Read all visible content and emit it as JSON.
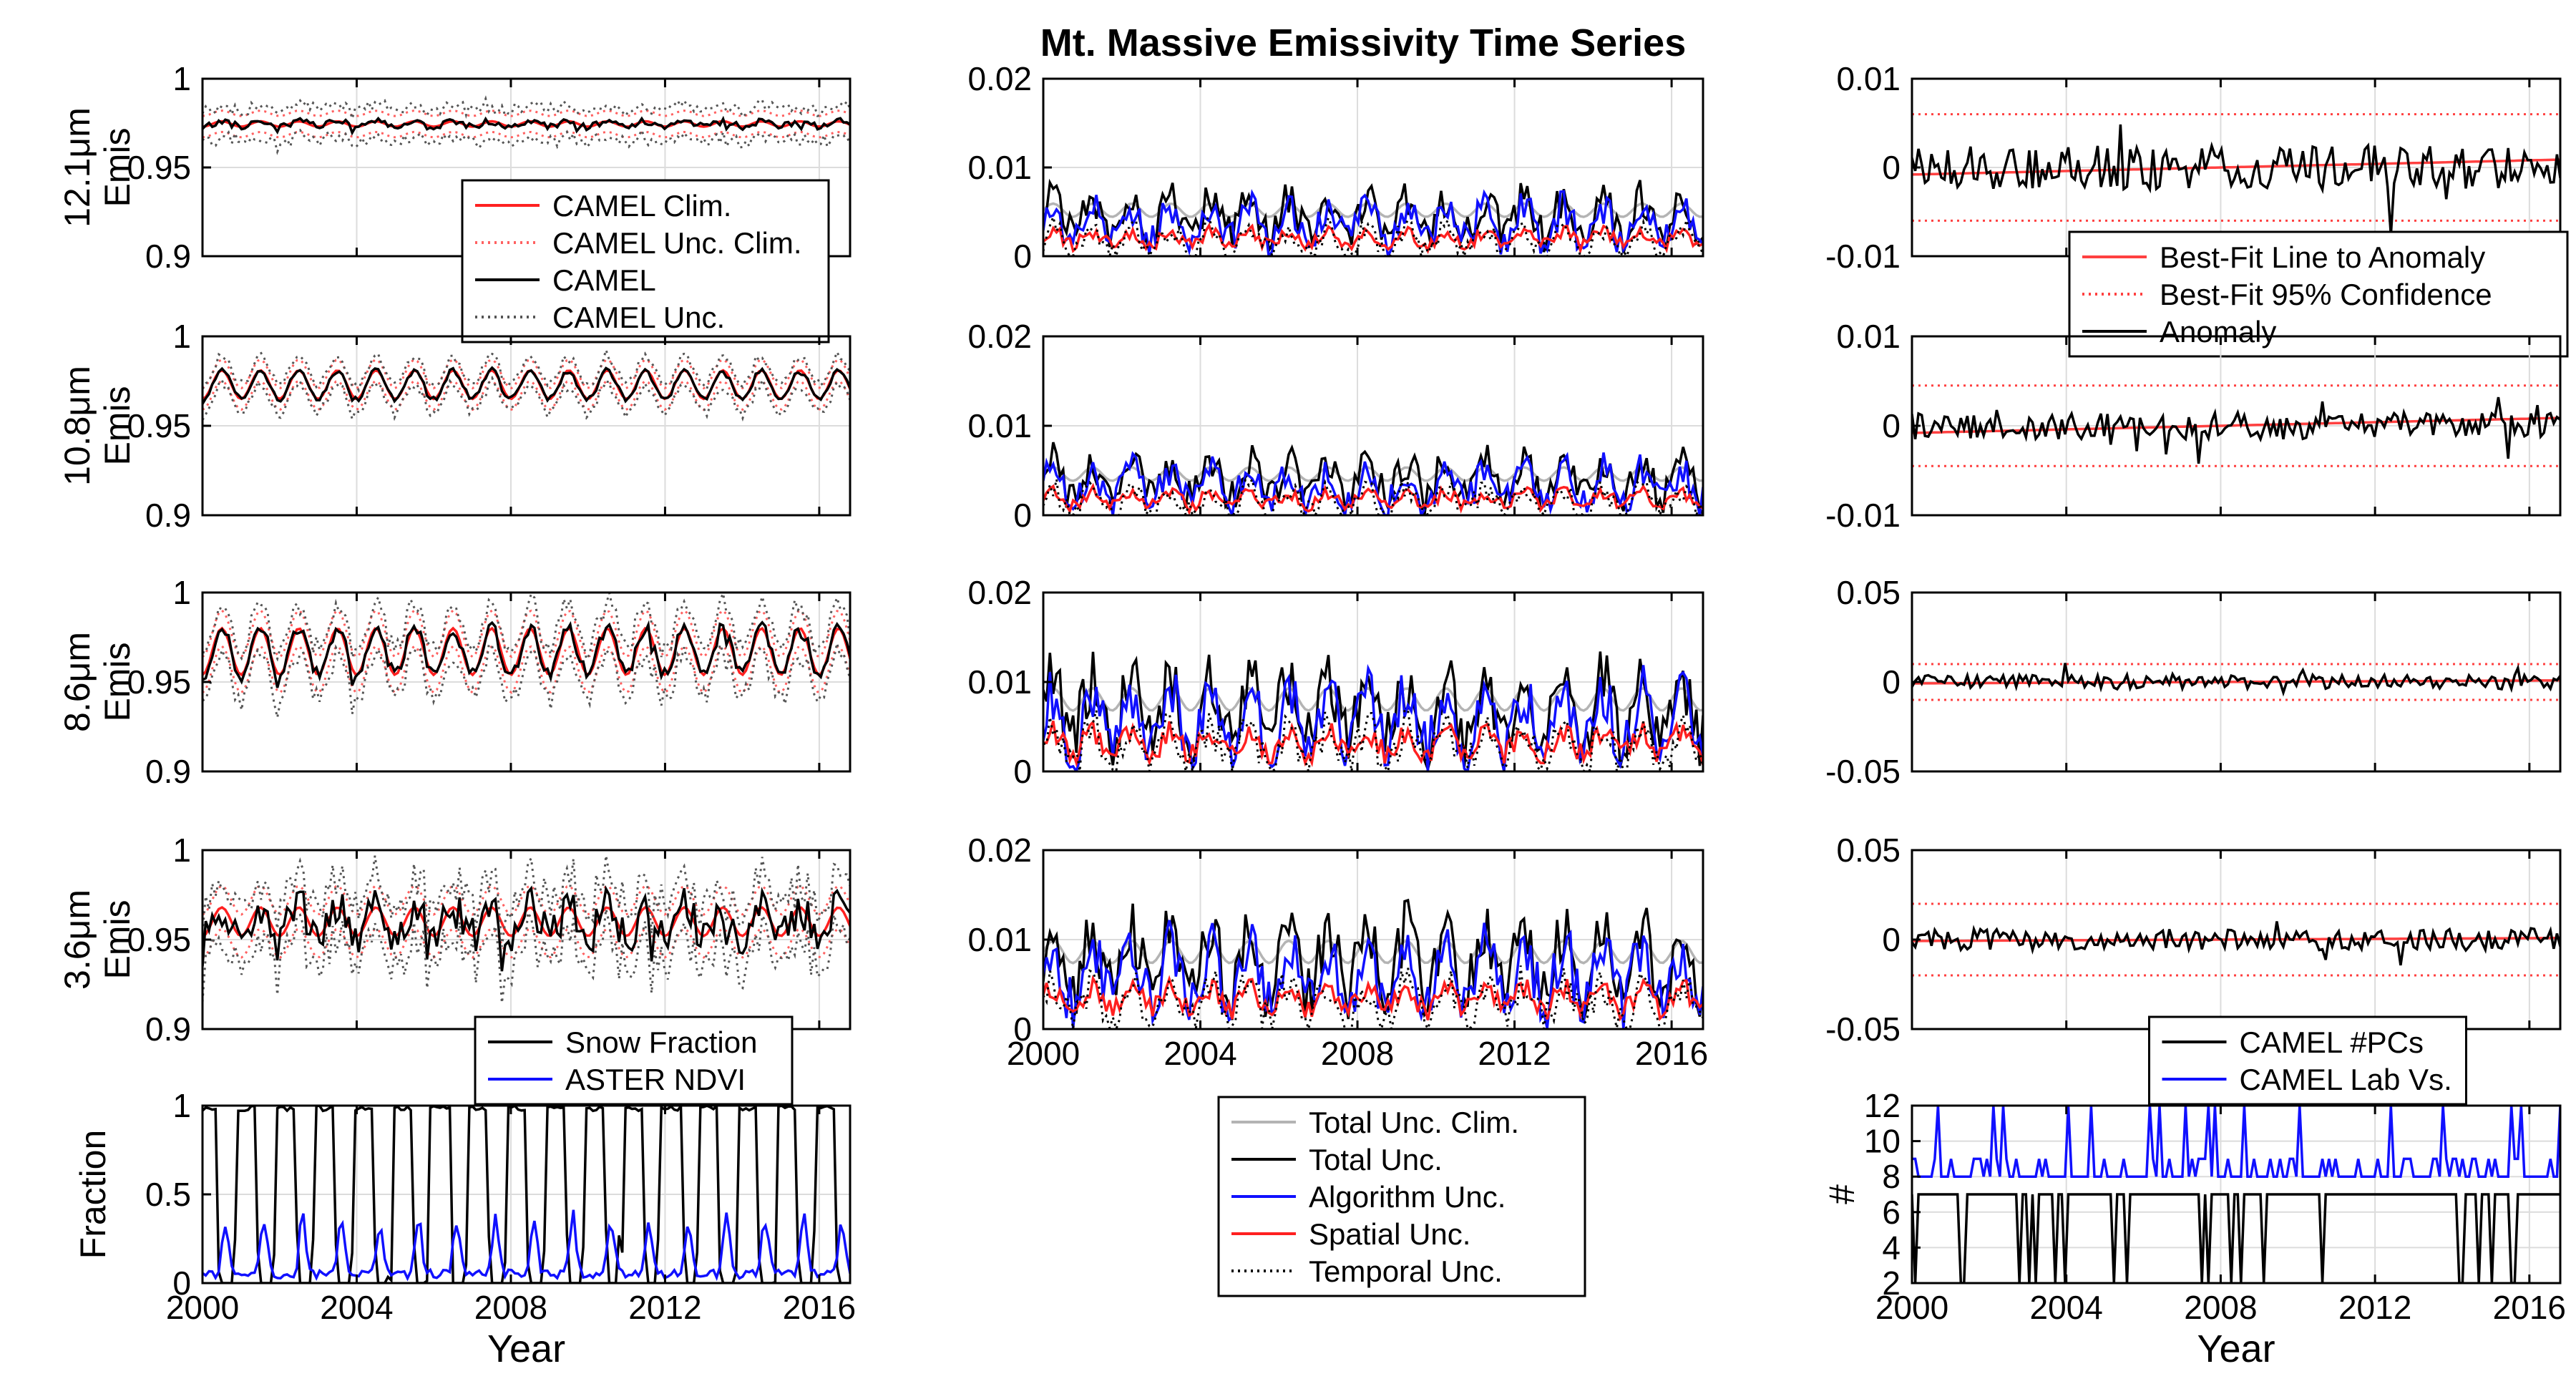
{
  "figure": {
    "title": "Mt. Massive Emissivity Time Series"
  },
  "chart_data": [
    {
      "id": "emis121",
      "type": "line",
      "ylabel": [
        "12.1μm",
        "Emis"
      ],
      "xlim": [
        2000,
        2016.8
      ],
      "ylim": [
        0.9,
        1.0
      ],
      "yticks": [
        {
          "v": 0.9,
          "label": "0.9"
        },
        {
          "v": 0.95,
          "label": "0.95"
        },
        {
          "v": 1.0,
          "label": "1"
        }
      ],
      "xticks": [
        2000,
        2004,
        2008,
        2012,
        2016
      ],
      "show_xticklabels": false,
      "gen": {
        "base": 0.9745,
        "amp": 0.0015,
        "noise": 0.002,
        "seed": 11
      },
      "series": [
        {
          "name": "CAMEL Clim.",
          "color": "#ff2020",
          "style": "solid",
          "kind": "clim"
        },
        {
          "name": "CAMEL Unc. Clim.",
          "color": "#ff6060",
          "style": "dotted",
          "kind": "climband",
          "offset": 0.006
        },
        {
          "name": "CAMEL",
          "color": "#000000",
          "style": "solid",
          "kind": "data"
        },
        {
          "name": "CAMEL Unc.",
          "color": "#555555",
          "style": "dotted",
          "kind": "band",
          "offset": 0.009
        }
      ],
      "legend": {
        "position": "bottom-right",
        "entries": [
          "CAMEL Clim.",
          "CAMEL Unc. Clim.",
          "CAMEL",
          "CAMEL Unc."
        ]
      }
    },
    {
      "id": "emis108",
      "type": "line",
      "ylabel": [
        "10.8μm",
        "Emis"
      ],
      "xlim": [
        2000,
        2016.8
      ],
      "ylim": [
        0.9,
        1.0
      ],
      "yticks": [
        {
          "v": 0.9,
          "label": "0.9"
        },
        {
          "v": 0.95,
          "label": "0.95"
        },
        {
          "v": 1.0,
          "label": "1"
        }
      ],
      "xticks": [
        2000,
        2004,
        2008,
        2012,
        2016
      ],
      "show_xticklabels": false,
      "gen": {
        "base": 0.973,
        "amp": 0.008,
        "noise": 0.0015,
        "seed": 22
      },
      "series": [
        {
          "name": "CAMEL Clim.",
          "color": "#ff2020",
          "style": "solid",
          "kind": "clim"
        },
        {
          "name": "CAMEL Unc. Clim.",
          "color": "#ff6060",
          "style": "dotted",
          "kind": "climband",
          "offset": 0.006
        },
        {
          "name": "CAMEL",
          "color": "#000000",
          "style": "solid",
          "kind": "data"
        },
        {
          "name": "CAMEL Unc.",
          "color": "#555555",
          "style": "dotted",
          "kind": "band",
          "offset": 0.008
        }
      ]
    },
    {
      "id": "emis86",
      "type": "line",
      "ylabel": [
        "8.6μm",
        "Emis"
      ],
      "xlim": [
        2000,
        2016.8
      ],
      "ylim": [
        0.9,
        1.0
      ],
      "yticks": [
        {
          "v": 0.9,
          "label": "0.9"
        },
        {
          "v": 0.95,
          "label": "0.95"
        },
        {
          "v": 1.0,
          "label": "1"
        }
      ],
      "xticks": [
        2000,
        2004,
        2008,
        2012,
        2016
      ],
      "show_xticklabels": false,
      "gen": {
        "base": 0.967,
        "amp": 0.013,
        "noise": 0.004,
        "seed": 33
      },
      "series": [
        {
          "name": "CAMEL Clim.",
          "color": "#ff2020",
          "style": "solid",
          "kind": "clim"
        },
        {
          "name": "CAMEL Unc. Clim.",
          "color": "#ff6060",
          "style": "dotted",
          "kind": "climband",
          "offset": 0.01
        },
        {
          "name": "CAMEL",
          "color": "#000000",
          "style": "solid",
          "kind": "data"
        },
        {
          "name": "CAMEL Unc.",
          "color": "#555555",
          "style": "dotted",
          "kind": "band",
          "offset": 0.014
        }
      ]
    },
    {
      "id": "emis36",
      "type": "line",
      "ylabel": [
        "3.6μm",
        "Emis"
      ],
      "xlim": [
        2000,
        2016.8
      ],
      "ylim": [
        0.9,
        1.0
      ],
      "yticks": [
        {
          "v": 0.9,
          "label": "0.9"
        },
        {
          "v": 0.95,
          "label": "0.95"
        },
        {
          "v": 1.0,
          "label": "1"
        }
      ],
      "xticks": [
        2000,
        2004,
        2008,
        2012,
        2016
      ],
      "show_xticklabels": false,
      "gen": {
        "base": 0.96,
        "amp": 0.008,
        "noise": 0.011,
        "seed": 44
      },
      "series": [
        {
          "name": "CAMEL Clim.",
          "color": "#ff2020",
          "style": "solid",
          "kind": "clim"
        },
        {
          "name": "CAMEL Unc. Clim.",
          "color": "#ff6060",
          "style": "dotted",
          "kind": "climband",
          "offset": 0.012
        },
        {
          "name": "CAMEL",
          "color": "#000000",
          "style": "solid",
          "kind": "data"
        },
        {
          "name": "CAMEL Unc.",
          "color": "#555555",
          "style": "dotted",
          "kind": "band",
          "offset": 0.016
        }
      ]
    },
    {
      "id": "fraction",
      "type": "line",
      "ylabel": [
        "Fraction"
      ],
      "xlabel": "Year",
      "xlim": [
        2000,
        2016.8
      ],
      "ylim": [
        0,
        1
      ],
      "yticks": [
        {
          "v": 0,
          "label": "0"
        },
        {
          "v": 0.5,
          "label": "0.5"
        },
        {
          "v": 1,
          "label": "1"
        }
      ],
      "xticks": [
        2000,
        2004,
        2008,
        2012,
        2016
      ],
      "show_xticklabels": true,
      "gen": {
        "seed": 55
      },
      "series": [
        {
          "name": "Snow Fraction",
          "color": "#000000",
          "style": "solid",
          "kind": "snow"
        },
        {
          "name": "ASTER NDVI",
          "color": "#1010ff",
          "style": "solid",
          "kind": "ndvi"
        }
      ],
      "legend": {
        "position": "above",
        "entries": [
          "Snow Fraction",
          "ASTER NDVI"
        ]
      }
    },
    {
      "id": "unc121",
      "type": "line",
      "xlim": [
        2000,
        2016.8
      ],
      "ylim": [
        0,
        0.02
      ],
      "yticks": [
        {
          "v": 0,
          "label": "0"
        },
        {
          "v": 0.01,
          "label": "0.01"
        },
        {
          "v": 0.02,
          "label": "0.02"
        }
      ],
      "xticks": [
        2000,
        2004,
        2008,
        2012,
        2016
      ],
      "show_xticklabels": false,
      "gen": {
        "level": 0.0045,
        "spread": 0.003,
        "seed": 61
      },
      "series": [
        {
          "name": "Total Unc. Clim.",
          "color": "#b4b4b4",
          "style": "solid"
        },
        {
          "name": "Total Unc.",
          "color": "#000000",
          "style": "solid"
        },
        {
          "name": "Algorithm Unc.",
          "color": "#1010ff",
          "style": "solid"
        },
        {
          "name": "Spatial Unc.",
          "color": "#ff2020",
          "style": "solid"
        },
        {
          "name": "Temporal Unc.",
          "color": "#000000",
          "style": "dotted"
        }
      ]
    },
    {
      "id": "unc108",
      "type": "line",
      "xlim": [
        2000,
        2016.8
      ],
      "ylim": [
        0,
        0.02
      ],
      "yticks": [
        {
          "v": 0,
          "label": "0"
        },
        {
          "v": 0.01,
          "label": "0.01"
        },
        {
          "v": 0.02,
          "label": "0.02"
        }
      ],
      "xticks": [
        2000,
        2004,
        2008,
        2012,
        2016
      ],
      "show_xticklabels": false,
      "gen": {
        "level": 0.004,
        "spread": 0.003,
        "seed": 62
      },
      "series": [
        {
          "name": "Total Unc. Clim.",
          "color": "#b4b4b4",
          "style": "solid"
        },
        {
          "name": "Total Unc.",
          "color": "#000000",
          "style": "solid"
        },
        {
          "name": "Algorithm Unc.",
          "color": "#1010ff",
          "style": "solid"
        },
        {
          "name": "Spatial Unc.",
          "color": "#ff2020",
          "style": "solid"
        },
        {
          "name": "Temporal Unc.",
          "color": "#000000",
          "style": "dotted"
        }
      ]
    },
    {
      "id": "unc86",
      "type": "line",
      "xlim": [
        2000,
        2016.8
      ],
      "ylim": [
        0,
        0.02
      ],
      "yticks": [
        {
          "v": 0,
          "label": "0"
        },
        {
          "v": 0.01,
          "label": "0.01"
        },
        {
          "v": 0.02,
          "label": "0.02"
        }
      ],
      "xticks": [
        2000,
        2004,
        2008,
        2012,
        2016
      ],
      "show_xticklabels": false,
      "gen": {
        "level": 0.007,
        "spread": 0.005,
        "seed": 63
      },
      "series": [
        {
          "name": "Total Unc. Clim.",
          "color": "#b4b4b4",
          "style": "solid"
        },
        {
          "name": "Total Unc.",
          "color": "#000000",
          "style": "solid"
        },
        {
          "name": "Algorithm Unc.",
          "color": "#1010ff",
          "style": "solid"
        },
        {
          "name": "Spatial Unc.",
          "color": "#ff2020",
          "style": "solid"
        },
        {
          "name": "Temporal Unc.",
          "color": "#000000",
          "style": "dotted"
        }
      ]
    },
    {
      "id": "unc36",
      "type": "line",
      "xlim": [
        2000,
        2016.8
      ],
      "ylim": [
        0,
        0.02
      ],
      "yticks": [
        {
          "v": 0,
          "label": "0"
        },
        {
          "v": 0.01,
          "label": "0.01"
        },
        {
          "v": 0.02,
          "label": "0.02"
        }
      ],
      "xticks": [
        2000,
        2004,
        2008,
        2012,
        2016
      ],
      "show_xticklabels": true,
      "gen": {
        "level": 0.0075,
        "spread": 0.005,
        "seed": 64
      },
      "series": [
        {
          "name": "Total Unc. Clim.",
          "color": "#b4b4b4",
          "style": "solid"
        },
        {
          "name": "Total Unc.",
          "color": "#000000",
          "style": "solid"
        },
        {
          "name": "Algorithm Unc.",
          "color": "#1010ff",
          "style": "solid"
        },
        {
          "name": "Spatial Unc.",
          "color": "#ff2020",
          "style": "solid"
        },
        {
          "name": "Temporal Unc.",
          "color": "#000000",
          "style": "dotted"
        }
      ],
      "legend": {
        "position": "below",
        "entries": [
          "Total Unc. Clim.",
          "Total Unc.",
          "Algorithm Unc.",
          "Spatial Unc.",
          "Temporal Unc."
        ]
      }
    },
    {
      "id": "anom121",
      "type": "line",
      "xlim": [
        2000,
        2016.8
      ],
      "ylim": [
        -0.01,
        0.01
      ],
      "yticks": [
        {
          "v": -0.01,
          "label": "-0.01"
        },
        {
          "v": 0,
          "label": "0"
        },
        {
          "v": 0.01,
          "label": "0.01"
        }
      ],
      "xticks": [
        2000,
        2004,
        2008,
        2012,
        2016
      ],
      "show_xticklabels": false,
      "gen": {
        "noise": 0.0025,
        "spikes": 0.006,
        "seed": 71
      },
      "conf": 0.006,
      "series": [
        {
          "name": "Best-Fit Line to Anomaly",
          "color": "#ff4040",
          "style": "solid"
        },
        {
          "name": "Best-Fit 95% Confidence",
          "color": "#ff4040",
          "style": "dotted"
        },
        {
          "name": "Anomaly",
          "color": "#000000",
          "style": "solid"
        }
      ],
      "legend": {
        "position": "bottom-right",
        "entries": [
          "Best-Fit Line to Anomaly",
          "Best-Fit 95% Confidence",
          "Anomaly"
        ]
      }
    },
    {
      "id": "anom108",
      "type": "line",
      "xlim": [
        2000,
        2016.8
      ],
      "ylim": [
        -0.01,
        0.01
      ],
      "yticks": [
        {
          "v": -0.01,
          "label": "-0.01"
        },
        {
          "v": 0,
          "label": "0"
        },
        {
          "v": 0.01,
          "label": "0.01"
        }
      ],
      "xticks": [
        2000,
        2004,
        2008,
        2012,
        2016
      ],
      "show_xticklabels": false,
      "gen": {
        "noise": 0.0015,
        "spikes": 0.004,
        "seed": 72
      },
      "conf": 0.0045,
      "series": [
        {
          "name": "Best-Fit Line to Anomaly",
          "color": "#ff4040",
          "style": "solid"
        },
        {
          "name": "Best-Fit 95% Confidence",
          "color": "#ff4040",
          "style": "dotted"
        },
        {
          "name": "Anomaly",
          "color": "#000000",
          "style": "solid"
        }
      ]
    },
    {
      "id": "anom86",
      "type": "line",
      "xlim": [
        2000,
        2016.8
      ],
      "ylim": [
        -0.05,
        0.05
      ],
      "yticks": [
        {
          "v": -0.05,
          "label": "-0.05"
        },
        {
          "v": 0,
          "label": "0"
        },
        {
          "v": 0.05,
          "label": "0.05"
        }
      ],
      "xticks": [
        2000,
        2004,
        2008,
        2012,
        2016
      ],
      "show_xticklabels": false,
      "gen": {
        "noise": 0.004,
        "spikes": 0.008,
        "seed": 73
      },
      "conf": 0.01,
      "series": [
        {
          "name": "Best-Fit Line to Anomaly",
          "color": "#ff4040",
          "style": "solid"
        },
        {
          "name": "Best-Fit 95% Confidence",
          "color": "#ff4040",
          "style": "dotted"
        },
        {
          "name": "Anomaly",
          "color": "#000000",
          "style": "solid"
        }
      ]
    },
    {
      "id": "anom36",
      "type": "line",
      "xlim": [
        2000,
        2016.8
      ],
      "ylim": [
        -0.05,
        0.05
      ],
      "yticks": [
        {
          "v": -0.05,
          "label": "-0.05"
        },
        {
          "v": 0,
          "label": "0"
        },
        {
          "v": 0.05,
          "label": "0.05"
        }
      ],
      "xticks": [
        2000,
        2004,
        2008,
        2012,
        2016
      ],
      "show_xticklabels": false,
      "gen": {
        "noise": 0.006,
        "spikes": 0.015,
        "seed": 74
      },
      "conf": 0.02,
      "series": [
        {
          "name": "Best-Fit Line to Anomaly",
          "color": "#ff4040",
          "style": "solid"
        },
        {
          "name": "Best-Fit 95% Confidence",
          "color": "#ff4040",
          "style": "dotted"
        },
        {
          "name": "Anomaly",
          "color": "#000000",
          "style": "solid"
        }
      ]
    },
    {
      "id": "pcs",
      "type": "line",
      "ylabel": [
        "#"
      ],
      "xlabel": "Year",
      "xlim": [
        2000,
        2016.8
      ],
      "ylim": [
        2,
        12
      ],
      "yticks": [
        {
          "v": 2,
          "label": "2"
        },
        {
          "v": 4,
          "label": "4"
        },
        {
          "v": 6,
          "label": "6"
        },
        {
          "v": 8,
          "label": "8"
        },
        {
          "v": 10,
          "label": "10"
        },
        {
          "v": 12,
          "label": "12"
        }
      ],
      "xticks": [
        2000,
        2004,
        2008,
        2012,
        2016
      ],
      "show_xticklabels": true,
      "gen": {
        "seed": 81
      },
      "series": [
        {
          "name": "CAMEL #PCs",
          "color": "#000000",
          "style": "solid",
          "kind": "pcs"
        },
        {
          "name": "CAMEL Lab Vs.",
          "color": "#1010ff",
          "style": "solid",
          "kind": "labvs"
        }
      ],
      "legend": {
        "position": "above",
        "entries": [
          "CAMEL #PCs",
          "CAMEL Lab Vs."
        ]
      }
    }
  ]
}
